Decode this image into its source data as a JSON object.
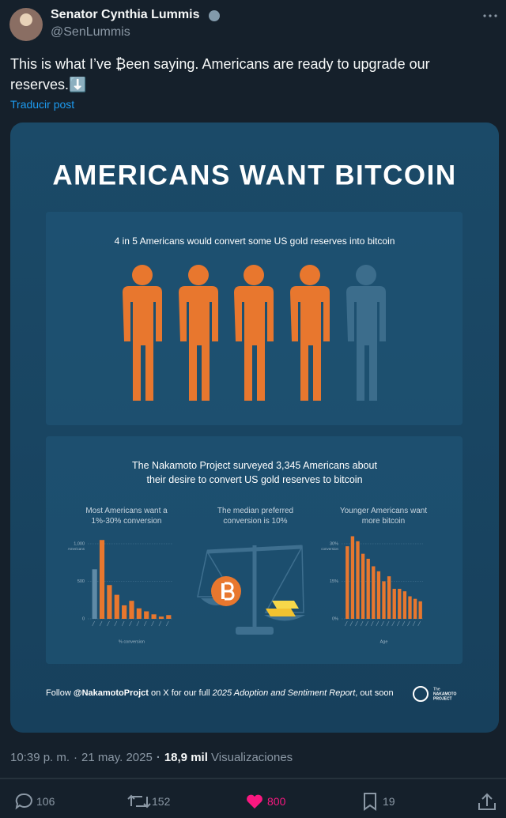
{
  "post": {
    "author": "Senator Cynthia Lummis",
    "handle": "@SenLummis",
    "text": "This is what I’ve ₿een saying. Americans are ready to upgrade our reserves.⬇️",
    "translate": "Traducir post"
  },
  "infographic": {
    "title": "AMERICANS WANT BITCOIN",
    "stat": "4 in 5 Americans would convert some US gold reserves into bitcoin",
    "survey": "The Nakamoto Project surveyed 3,345 Americans about their desire to convert US gold reserves to bitcoin",
    "median": "The median preferred conversion is 10%",
    "footer": [
      "Follow",
      "@NakamotoProjct",
      "on X for our full",
      "2025 Adoption and Sentiment Report",
      ", out soon"
    ],
    "logo": [
      "The",
      "NAKAMOTO",
      "PROJECT"
    ]
  },
  "chart_data": [
    {
      "type": "bar",
      "title": "Most Americans want a 1%-30% conversion",
      "y_label": "Americans",
      "x_label": "% conversion",
      "categories": [
        null,
        null,
        null,
        null,
        null,
        null,
        null,
        null,
        null,
        null,
        null
      ],
      "values": [
        660,
        1050,
        450,
        320,
        180,
        240,
        140,
        100,
        60,
        30,
        50
      ],
      "colors": [
        "#5f8aa6",
        "#e8772e",
        "#e8772e",
        "#e8772e",
        "#e8772e",
        "#e8772e",
        "#e8772e",
        "#e8772e",
        "#e8772e",
        "#e8772e",
        "#e8772e"
      ],
      "ylim": [
        0,
        1200
      ],
      "yticks": [
        0,
        500,
        {
          "value": 1000,
          "label": "1,000"
        }
      ],
      "grid": true
    },
    {
      "type": "bar",
      "title": "Younger Americans want more bitcoin",
      "y_label": "conversion",
      "x_label": "Age",
      "categories": [
        null,
        null,
        null,
        null,
        null,
        null,
        null,
        null,
        null,
        null,
        null,
        null,
        null,
        null,
        null
      ],
      "values": [
        29,
        33,
        31,
        26,
        24,
        21,
        19,
        15,
        17,
        12,
        12,
        11,
        9,
        8,
        7
      ],
      "color": "#e8772e",
      "ylim": [
        0,
        36
      ],
      "yticks": [
        {
          "value": 0,
          "label": "0%"
        },
        {
          "value": 15,
          "label": "15%"
        },
        {
          "value": 30,
          "label": "30%"
        }
      ],
      "grid": true
    }
  ],
  "meta": {
    "time": "10:39 p. m.",
    "date": "21 may. 2025",
    "views": "18,9 mil",
    "views_label": "Visualizaciones"
  },
  "actions": {
    "replies": "106",
    "reposts": "152",
    "likes": "800",
    "bookmarks": "19"
  }
}
